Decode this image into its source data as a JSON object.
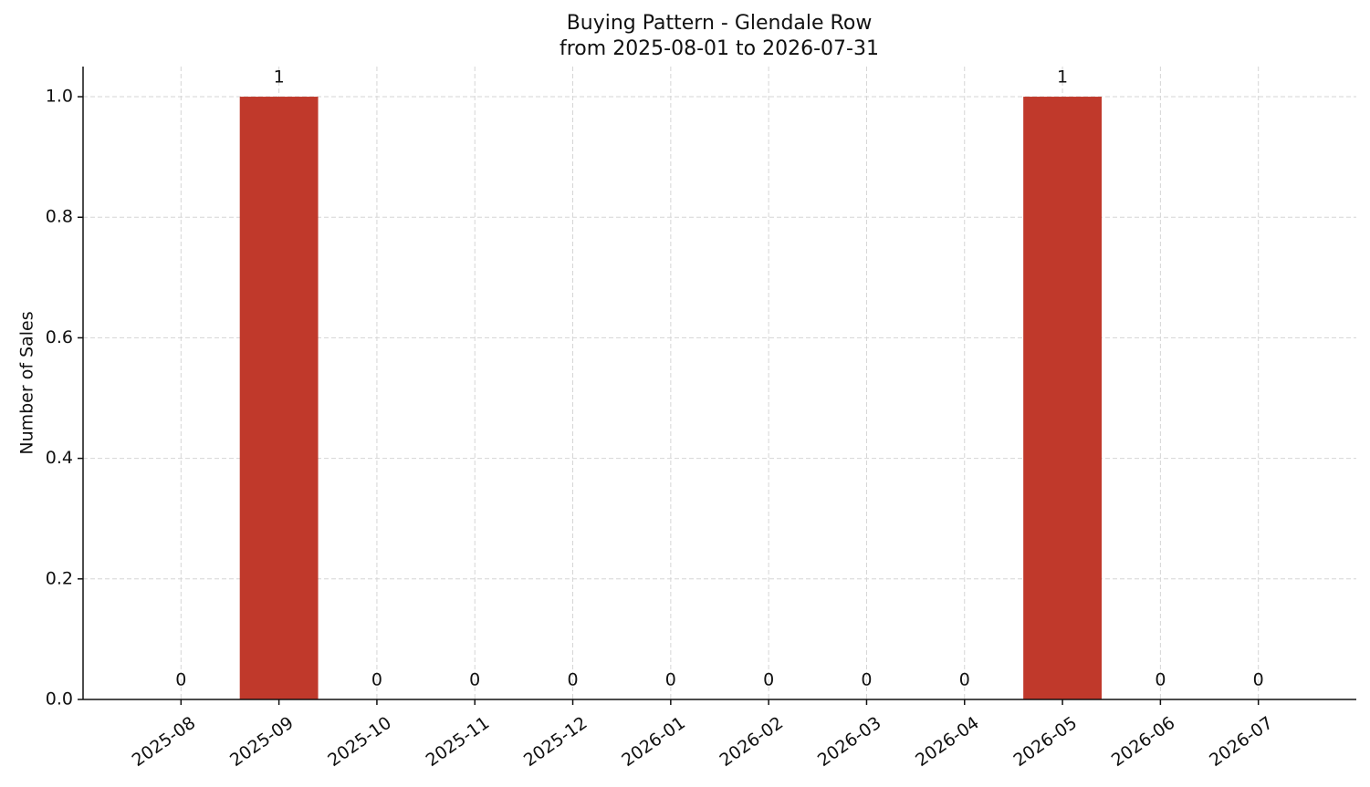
{
  "chart_data": {
    "type": "bar",
    "title": "Buying Pattern - Glendale Row",
    "subtitle": "from 2025-08-01 to 2026-07-31",
    "y_label": "Number of Sales",
    "categories": [
      "2025-08",
      "2025-09",
      "2025-10",
      "2025-11",
      "2025-12",
      "2026-01",
      "2026-02",
      "2026-03",
      "2026-04",
      "2026-05",
      "2026-06",
      "2026-07"
    ],
    "values": [
      0,
      1,
      0,
      0,
      0,
      0,
      0,
      0,
      0,
      1,
      0,
      0
    ],
    "color": "#c0392b",
    "ylim": [
      0,
      1.05
    ],
    "yticks": [
      {
        "value": 0,
        "label": "0.0"
      },
      {
        "value": 0.2,
        "label": "0.2"
      },
      {
        "value": 0.4,
        "label": "0.4"
      },
      {
        "value": 0.6,
        "label": "0.6"
      },
      {
        "value": 0.8,
        "label": "0.8"
      },
      {
        "value": 1,
        "label": "1.0"
      }
    ],
    "grid": true
  }
}
